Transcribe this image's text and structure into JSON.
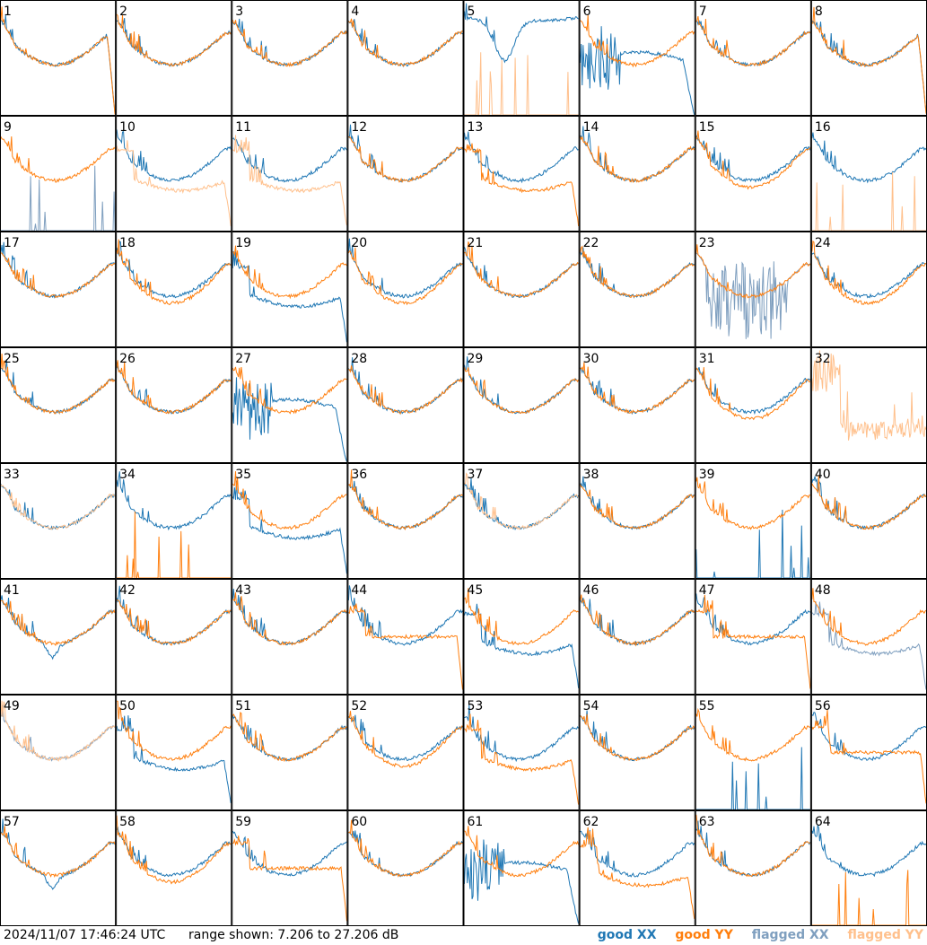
{
  "chart_data": {
    "type": "line",
    "grid_layout": {
      "rows": 8,
      "cols": 8
    },
    "y_range_db": [
      7.206,
      27.206
    ],
    "panels": [
      {
        "id": "1",
        "xx": "good",
        "yy": "good",
        "xx_shape": "drop_end",
        "yy_shape": "drop_end"
      },
      {
        "id": "2",
        "xx": "good",
        "yy": "good",
        "xx_shape": "normal",
        "yy_shape": "normal"
      },
      {
        "id": "3",
        "xx": "good",
        "yy": "good",
        "xx_shape": "normal",
        "yy_shape": "normal"
      },
      {
        "id": "4",
        "xx": "good",
        "yy": "good",
        "xx_shape": "normal",
        "yy_shape": "normal"
      },
      {
        "id": "5",
        "xx": "good",
        "yy": "flagged",
        "xx_shape": "dip_mid",
        "yy_shape": "spikes_low"
      },
      {
        "id": "6",
        "xx": "good",
        "yy": "good",
        "xx_shape": "wild_drop",
        "yy_shape": "normal"
      },
      {
        "id": "7",
        "xx": "good",
        "yy": "good",
        "xx_shape": "normal",
        "yy_shape": "normal"
      },
      {
        "id": "8",
        "xx": "good",
        "yy": "good",
        "xx_shape": "drop_end",
        "yy_shape": "drop_end"
      },
      {
        "id": "9",
        "xx": "flagged",
        "yy": "good",
        "xx_shape": "spikes_low",
        "yy_shape": "normal"
      },
      {
        "id": "10",
        "xx": "good",
        "yy": "flagged",
        "xx_shape": "normal",
        "yy_shape": "low_drop"
      },
      {
        "id": "11",
        "xx": "good",
        "yy": "flagged",
        "xx_shape": "normal",
        "yy_shape": "low_drop"
      },
      {
        "id": "12",
        "xx": "good",
        "yy": "good",
        "xx_shape": "normal",
        "yy_shape": "normal"
      },
      {
        "id": "13",
        "xx": "good",
        "yy": "good",
        "xx_shape": "normal",
        "yy_shape": "low_drop"
      },
      {
        "id": "14",
        "xx": "good",
        "yy": "good",
        "xx_shape": "normal",
        "yy_shape": "normal"
      },
      {
        "id": "15",
        "xx": "good",
        "yy": "good",
        "xx_shape": "normal",
        "yy_shape": "slightly_low"
      },
      {
        "id": "16",
        "xx": "good",
        "yy": "flagged",
        "xx_shape": "normal",
        "yy_shape": "spikes_low"
      },
      {
        "id": "17",
        "xx": "good",
        "yy": "good",
        "xx_shape": "normal",
        "yy_shape": "normal"
      },
      {
        "id": "18",
        "xx": "good",
        "yy": "good",
        "xx_shape": "normal",
        "yy_shape": "slightly_low"
      },
      {
        "id": "19",
        "xx": "good",
        "yy": "good",
        "xx_shape": "low_drop",
        "yy_shape": "normal"
      },
      {
        "id": "20",
        "xx": "good",
        "yy": "good",
        "xx_shape": "normal",
        "yy_shape": "slightly_low"
      },
      {
        "id": "21",
        "xx": "good",
        "yy": "good",
        "xx_shape": "normal",
        "yy_shape": "normal"
      },
      {
        "id": "22",
        "xx": "good",
        "yy": "good",
        "xx_shape": "normal",
        "yy_shape": "normal"
      },
      {
        "id": "23",
        "xx": "flagged",
        "yy": "good",
        "xx_shape": "noise",
        "yy_shape": "normal"
      },
      {
        "id": "24",
        "xx": "good",
        "yy": "good",
        "xx_shape": "normal",
        "yy_shape": "slightly_low"
      },
      {
        "id": "25",
        "xx": "good",
        "yy": "good",
        "xx_shape": "normal",
        "yy_shape": "normal"
      },
      {
        "id": "26",
        "xx": "good",
        "yy": "good",
        "xx_shape": "normal",
        "yy_shape": "normal"
      },
      {
        "id": "27",
        "xx": "good",
        "yy": "good",
        "xx_shape": "wild_drop",
        "yy_shape": "normal"
      },
      {
        "id": "28",
        "xx": "good",
        "yy": "good",
        "xx_shape": "normal",
        "yy_shape": "normal"
      },
      {
        "id": "29",
        "xx": "good",
        "yy": "good",
        "xx_shape": "normal",
        "yy_shape": "normal"
      },
      {
        "id": "30",
        "xx": "good",
        "yy": "good",
        "xx_shape": "normal",
        "yy_shape": "normal"
      },
      {
        "id": "31",
        "xx": "good",
        "yy": "good",
        "xx_shape": "normal",
        "yy_shape": "slightly_low"
      },
      {
        "id": "32",
        "xx": "good",
        "yy": "flagged",
        "xx_shape": "none",
        "yy_shape": "noise_high"
      },
      {
        "id": "33",
        "xx": "good",
        "yy": "flagged",
        "xx_shape": "normal",
        "yy_shape": "normal"
      },
      {
        "id": "34",
        "xx": "good",
        "yy": "good",
        "xx_shape": "normal",
        "yy_shape": "spikes_low"
      },
      {
        "id": "35",
        "xx": "good",
        "yy": "good",
        "xx_shape": "low_drop",
        "yy_shape": "normal"
      },
      {
        "id": "36",
        "xx": "good",
        "yy": "good",
        "xx_shape": "normal",
        "yy_shape": "normal"
      },
      {
        "id": "37",
        "xx": "good",
        "yy": "flagged",
        "xx_shape": "normal",
        "yy_shape": "normal"
      },
      {
        "id": "38",
        "xx": "good",
        "yy": "good",
        "xx_shape": "normal",
        "yy_shape": "normal"
      },
      {
        "id": "39",
        "xx": "good",
        "yy": "good",
        "xx_shape": "spikes_low",
        "yy_shape": "normal"
      },
      {
        "id": "40",
        "xx": "good",
        "yy": "good",
        "xx_shape": "normal",
        "yy_shape": "normal"
      },
      {
        "id": "41",
        "xx": "good",
        "yy": "good",
        "xx_shape": "dip_small",
        "yy_shape": "normal"
      },
      {
        "id": "42",
        "xx": "good",
        "yy": "good",
        "xx_shape": "normal",
        "yy_shape": "normal"
      },
      {
        "id": "43",
        "xx": "good",
        "yy": "good",
        "xx_shape": "normal",
        "yy_shape": "normal"
      },
      {
        "id": "44",
        "xx": "good",
        "yy": "good",
        "xx_shape": "normal",
        "yy_shape": "flat_mid"
      },
      {
        "id": "45",
        "xx": "good",
        "yy": "good",
        "xx_shape": "low_drop",
        "yy_shape": "normal"
      },
      {
        "id": "46",
        "xx": "good",
        "yy": "good",
        "xx_shape": "normal",
        "yy_shape": "normal"
      },
      {
        "id": "47",
        "xx": "good",
        "yy": "good",
        "xx_shape": "normal",
        "yy_shape": "flat_mid"
      },
      {
        "id": "48",
        "xx": "flagged",
        "yy": "good",
        "xx_shape": "low_drop",
        "yy_shape": "normal"
      },
      {
        "id": "49",
        "xx": "flagged",
        "yy": "flagged",
        "xx_shape": "normal",
        "yy_shape": "normal"
      },
      {
        "id": "50",
        "xx": "good",
        "yy": "good",
        "xx_shape": "low_drop",
        "yy_shape": "normal"
      },
      {
        "id": "51",
        "xx": "good",
        "yy": "good",
        "xx_shape": "normal",
        "yy_shape": "normal"
      },
      {
        "id": "52",
        "xx": "good",
        "yy": "good",
        "xx_shape": "normal",
        "yy_shape": "slightly_low"
      },
      {
        "id": "53",
        "xx": "good",
        "yy": "good",
        "xx_shape": "normal",
        "yy_shape": "low_drop"
      },
      {
        "id": "54",
        "xx": "good",
        "yy": "good",
        "xx_shape": "normal",
        "yy_shape": "normal"
      },
      {
        "id": "55",
        "xx": "good",
        "yy": "good",
        "xx_shape": "spikes_low",
        "yy_shape": "normal"
      },
      {
        "id": "56",
        "xx": "good",
        "yy": "good",
        "xx_shape": "normal",
        "yy_shape": "flat_mid"
      },
      {
        "id": "57",
        "xx": "good",
        "yy": "good",
        "xx_shape": "dip_small",
        "yy_shape": "normal"
      },
      {
        "id": "58",
        "xx": "good",
        "yy": "good",
        "xx_shape": "normal",
        "yy_shape": "slightly_low"
      },
      {
        "id": "59",
        "xx": "good",
        "yy": "good",
        "xx_shape": "normal",
        "yy_shape": "flat_mid"
      },
      {
        "id": "60",
        "xx": "good",
        "yy": "good",
        "xx_shape": "normal",
        "yy_shape": "normal"
      },
      {
        "id": "61",
        "xx": "good",
        "yy": "good",
        "xx_shape": "wild_drop",
        "yy_shape": "normal"
      },
      {
        "id": "62",
        "xx": "good",
        "yy": "good",
        "xx_shape": "normal",
        "yy_shape": "low_drop"
      },
      {
        "id": "63",
        "xx": "good",
        "yy": "good",
        "xx_shape": "normal",
        "yy_shape": "normal"
      },
      {
        "id": "64",
        "xx": "good",
        "yy": "good",
        "xx_shape": "normal",
        "yy_shape": "spikes_low"
      }
    ]
  },
  "footer": {
    "timestamp": "2024/11/07 17:46:24 UTC",
    "range_text": "range shown: 7.206 to 27.206 dB"
  },
  "legend": {
    "good_xx": "good XX",
    "good_yy": "good YY",
    "flagged_xx": "flagged XX",
    "flagged_yy": "flagged YY"
  },
  "colors": {
    "good_xx": "#1f77b4",
    "good_yy": "#ff7f0e",
    "flagged_xx": "#7f9fbf",
    "flagged_yy": "#ffc08c",
    "border": "#000000"
  }
}
